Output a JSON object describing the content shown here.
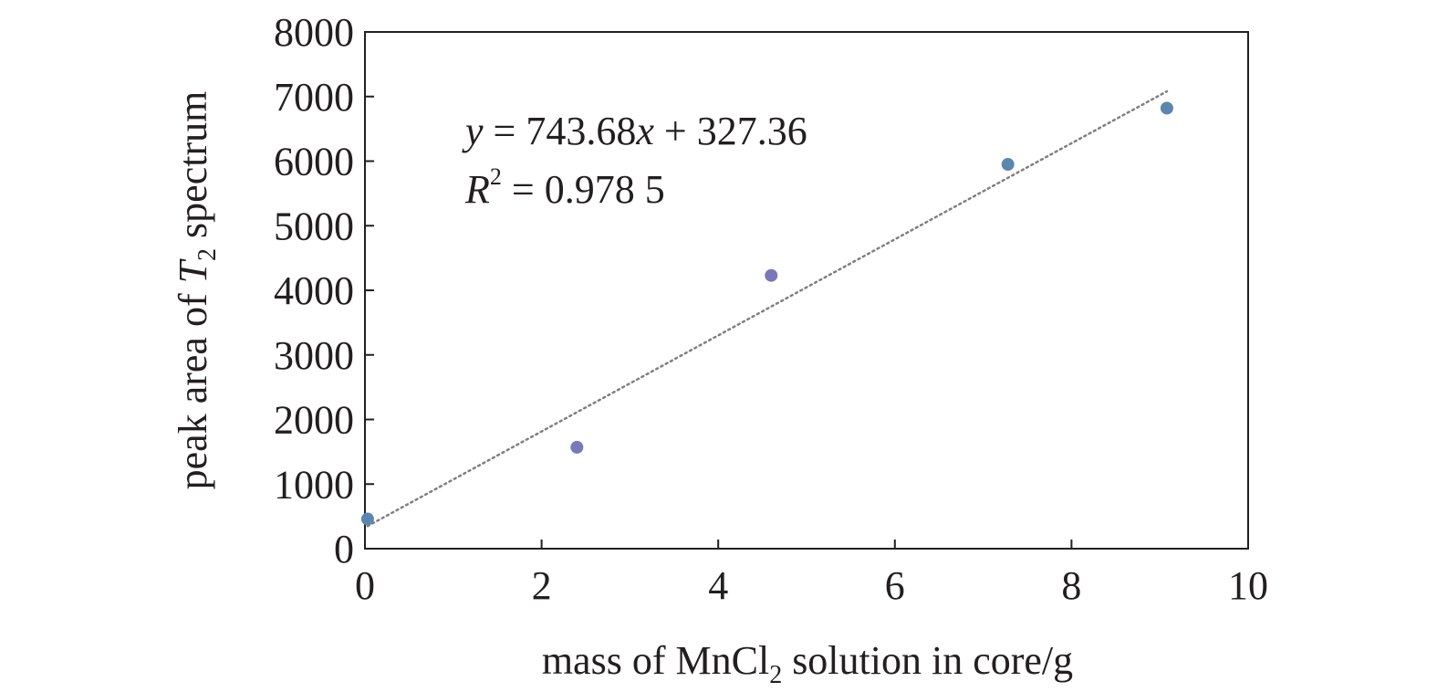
{
  "chart_data": {
    "type": "scatter",
    "xlabel": {
      "pre": "mass of MnCl",
      "sub": "2",
      "post": " solution in core/g"
    },
    "ylabel": {
      "pre": "peak area of ",
      "var": "T",
      "sub": "2",
      "post": " spectrum"
    },
    "xlim": [
      0,
      10
    ],
    "ylim": [
      0,
      8000
    ],
    "x_ticks": [
      0,
      2,
      4,
      6,
      8,
      10
    ],
    "y_ticks": [
      0,
      1000,
      2000,
      3000,
      4000,
      5000,
      6000,
      7000,
      8000
    ],
    "grid": false,
    "series": [
      {
        "points": [
          {
            "x": 0.03,
            "y": 460,
            "color": "#5b86ad"
          },
          {
            "x": 2.4,
            "y": 1570,
            "color": "#7a78bb"
          },
          {
            "x": 4.6,
            "y": 4230,
            "color": "#7a78bb"
          },
          {
            "x": 7.28,
            "y": 5950,
            "color": "#5b86ad"
          },
          {
            "x": 9.08,
            "y": 6820,
            "color": "#5b86ad"
          }
        ]
      }
    ],
    "trendline": {
      "slope": 743.68,
      "intercept": 327.36,
      "x_range": [
        0.03,
        9.08
      ],
      "color": "#7f7f7f",
      "style": "dotted"
    },
    "annotations": {
      "equation": {
        "y_var": "y",
        "eq_mid": " = 743.68",
        "x_var": "x",
        "eq_end": " + 327.36"
      },
      "r2": {
        "var": "R",
        "sup": "2",
        "value": " = 0.978 5"
      }
    }
  }
}
